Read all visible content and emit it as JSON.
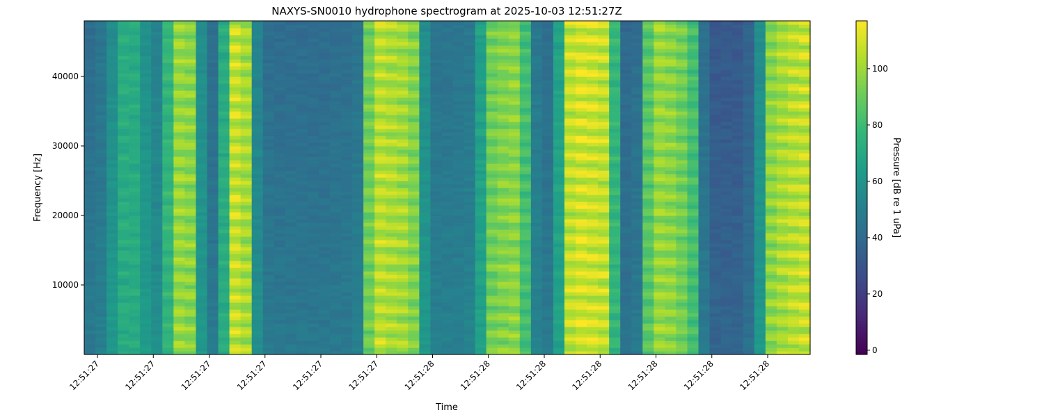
{
  "chart_data": {
    "type": "heatmap",
    "title": "NAXYS-SN0010 hydrophone spectrogram at 2025-10-03 12:51:27Z",
    "xlabel": "Time",
    "ylabel": "Frequency [Hz]",
    "colorbar_label": "Pressure [dB re 1 uPa]",
    "colormap": "viridis",
    "x_tick_labels": [
      "12:51:27",
      "12:51:27",
      "12:51:27",
      "12:51:27",
      "12:51:27",
      "12:51:27",
      "12:51:28",
      "12:51:28",
      "12:51:28",
      "12:51:28",
      "12:51:28",
      "12:51:28",
      "12:51:28"
    ],
    "y_ticks": [
      10000,
      20000,
      30000,
      40000
    ],
    "ylim": [
      0,
      48000
    ],
    "colorbar_ticks": [
      0,
      20,
      40,
      60,
      80,
      100
    ],
    "clim": [
      -1.5,
      117
    ],
    "column_mean_db": [
      45,
      48,
      60,
      75,
      75,
      62,
      55,
      80,
      102,
      100,
      60,
      45,
      75,
      110,
      105,
      55,
      45,
      44,
      44,
      44,
      44,
      44,
      45,
      45,
      48,
      95,
      108,
      106,
      104,
      98,
      60,
      48,
      48,
      48,
      50,
      70,
      95,
      98,
      100,
      85,
      50,
      45,
      70,
      110,
      113,
      112,
      110,
      80,
      42,
      45,
      90,
      102,
      100,
      95,
      85,
      45,
      35,
      35,
      35,
      40,
      60,
      100,
      105,
      108,
      110
    ]
  }
}
